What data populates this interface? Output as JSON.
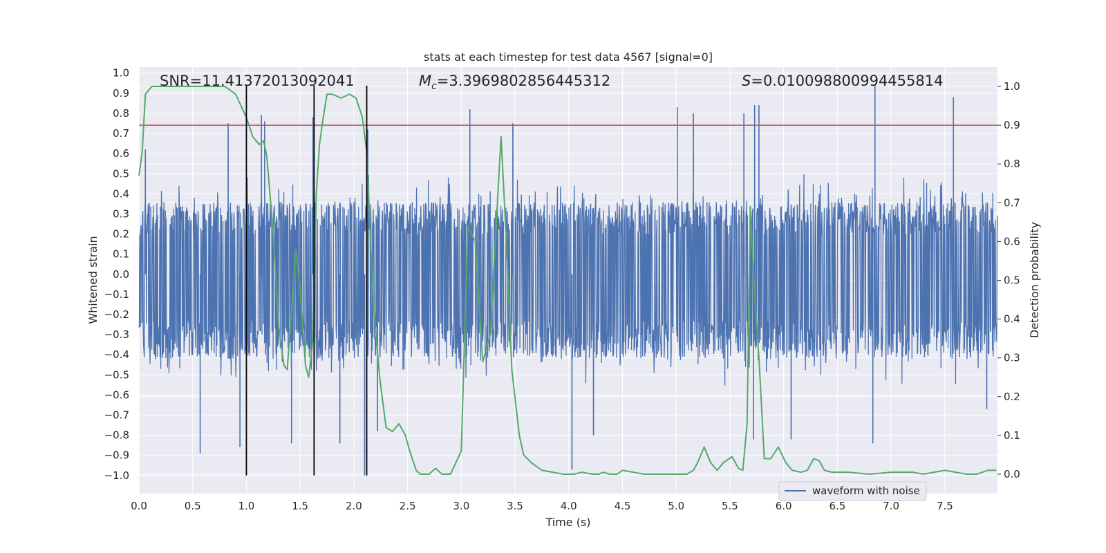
{
  "chart_data": {
    "type": "line",
    "title": "stats at each timestep for test data 4567 [signal=0]",
    "xlabel": "Time (s)",
    "ylabel": "Whitened strain",
    "y2label": "Detection probability",
    "xlim": [
      0.0,
      7.99
    ],
    "ylim": [
      -1.09,
      1.03
    ],
    "y2lim": [
      -0.05,
      1.05
    ],
    "x_ticks": [
      "0.0",
      "0.5",
      "1.0",
      "1.5",
      "2.0",
      "2.5",
      "3.0",
      "3.5",
      "4.0",
      "4.5",
      "5.0",
      "5.5",
      "6.0",
      "6.5",
      "7.0",
      "7.5"
    ],
    "y_ticks": [
      "1.0",
      "0.9",
      "0.8",
      "0.7",
      "0.6",
      "0.5",
      "0.4",
      "0.3",
      "0.2",
      "0.1",
      "0.0",
      "-0.1",
      "-0.2",
      "-0.3",
      "-0.4",
      "-0.5",
      "-0.6",
      "-0.7",
      "-0.8",
      "-0.9",
      "-1.0"
    ],
    "y2_ticks": [
      "1.0",
      "0.9",
      "0.8",
      "0.7",
      "0.6",
      "0.5",
      "0.4",
      "0.3",
      "0.2",
      "0.1",
      "0.0"
    ],
    "grid": true,
    "legend": {
      "position": "lower-right",
      "entries": [
        "waveform with noise"
      ]
    },
    "colors": {
      "waveform": "#4c72b0",
      "probability": "#55a868",
      "threshold": "#c44e52",
      "markers": "#000000",
      "plot_bg": "#eaeaf2",
      "grid": "#ffffff"
    },
    "annotations": [
      {
        "id": "snr",
        "text": "SNR=11.41372013092041"
      },
      {
        "id": "mc",
        "text_prefix": "M",
        "text_sub": "c",
        "text_rest": "=3.3969802856445312"
      },
      {
        "id": "s",
        "text_prefix": "S",
        "text_rest": "=0.010098800994455814"
      }
    ],
    "series": [
      {
        "name": "waveform with noise",
        "axis": "left",
        "render": "dense noise",
        "envelope_typical": [
          -0.42,
          0.36
        ],
        "peaks": [
          {
            "x": 0.06,
            "y": 0.62
          },
          {
            "x": 0.57,
            "y": -0.89
          },
          {
            "x": 0.83,
            "y": 0.75
          },
          {
            "x": 0.94,
            "y": -0.86
          },
          {
            "x": 1.14,
            "y": 0.79
          },
          {
            "x": 1.17,
            "y": 0.76
          },
          {
            "x": 1.42,
            "y": -0.84
          },
          {
            "x": 1.62,
            "y": 0.78
          },
          {
            "x": 1.63,
            "y": -0.76
          },
          {
            "x": 1.87,
            "y": -0.84
          },
          {
            "x": 2.1,
            "y": -1.0
          },
          {
            "x": 2.13,
            "y": 0.72
          },
          {
            "x": 2.22,
            "y": -0.78
          },
          {
            "x": 3.08,
            "y": 0.82
          },
          {
            "x": 3.48,
            "y": 0.75
          },
          {
            "x": 4.03,
            "y": -0.97
          },
          {
            "x": 4.23,
            "y": -0.8
          },
          {
            "x": 5.01,
            "y": 0.83
          },
          {
            "x": 5.16,
            "y": 0.8
          },
          {
            "x": 5.63,
            "y": 0.8
          },
          {
            "x": 5.73,
            "y": 0.84
          },
          {
            "x": 5.77,
            "y": 0.84
          },
          {
            "x": 5.72,
            "y": -0.82
          },
          {
            "x": 6.07,
            "y": -0.82
          },
          {
            "x": 6.85,
            "y": 0.94
          },
          {
            "x": 6.83,
            "y": -0.84
          },
          {
            "x": 7.58,
            "y": 0.88
          },
          {
            "x": 7.89,
            "y": -0.67
          }
        ]
      },
      {
        "name": "",
        "axis": "right",
        "x": [
          0.0,
          0.03,
          0.06,
          0.12,
          0.2,
          0.4,
          0.6,
          0.72,
          0.8,
          0.9,
          1.0,
          1.06,
          1.12,
          1.16,
          1.19,
          1.25,
          1.3,
          1.35,
          1.38,
          1.42,
          1.46,
          1.5,
          1.55,
          1.58,
          1.62,
          1.65,
          1.68,
          1.71,
          1.75,
          1.8,
          1.88,
          1.96,
          2.02,
          2.08,
          2.12,
          2.18,
          2.24,
          2.3,
          2.36,
          2.42,
          2.48,
          2.52,
          2.58,
          2.62,
          2.7,
          2.76,
          2.82,
          2.9,
          3.0,
          3.06,
          3.13,
          3.2,
          3.27,
          3.33,
          3.37,
          3.42,
          3.47,
          3.54,
          3.58,
          3.65,
          3.75,
          3.85,
          3.95,
          4.0,
          4.05,
          4.12,
          4.22,
          4.28,
          4.32,
          4.38,
          4.45,
          4.5,
          4.6,
          4.7,
          4.8,
          4.9,
          5.0,
          5.1,
          5.16,
          5.2,
          5.26,
          5.32,
          5.38,
          5.44,
          5.52,
          5.58,
          5.62,
          5.66,
          5.69,
          5.73,
          5.77,
          5.82,
          5.88,
          5.95,
          6.02,
          6.08,
          6.16,
          6.22,
          6.28,
          6.33,
          6.38,
          6.45,
          6.6,
          6.8,
          7.0,
          7.2,
          7.3,
          7.4,
          7.5,
          7.6,
          7.7,
          7.8,
          7.9,
          7.98
        ],
        "values": [
          0.77,
          0.83,
          0.98,
          1.0,
          1.0,
          1.0,
          1.0,
          1.0,
          1.0,
          0.98,
          0.92,
          0.87,
          0.85,
          0.86,
          0.82,
          0.62,
          0.38,
          0.28,
          0.27,
          0.42,
          0.58,
          0.48,
          0.28,
          0.25,
          0.35,
          0.72,
          0.85,
          0.91,
          0.98,
          0.98,
          0.97,
          0.98,
          0.97,
          0.92,
          0.83,
          0.45,
          0.25,
          0.12,
          0.11,
          0.13,
          0.1,
          0.06,
          0.01,
          0.0,
          0.0,
          0.015,
          0.0,
          0.0,
          0.06,
          0.64,
          0.6,
          0.29,
          0.36,
          0.67,
          0.87,
          0.6,
          0.27,
          0.1,
          0.05,
          0.03,
          0.01,
          0.005,
          0.0,
          0.0,
          0.0,
          0.005,
          0.0,
          0.0,
          0.005,
          0.0,
          0.0,
          0.01,
          0.005,
          0.0,
          0.0,
          0.0,
          0.0,
          0.0,
          0.01,
          0.03,
          0.07,
          0.03,
          0.01,
          0.03,
          0.045,
          0.015,
          0.01,
          0.13,
          0.69,
          0.46,
          0.3,
          0.04,
          0.04,
          0.07,
          0.03,
          0.01,
          0.005,
          0.01,
          0.04,
          0.035,
          0.01,
          0.005,
          0.005,
          0.0,
          0.005,
          0.005,
          0.0,
          0.005,
          0.01,
          0.005,
          0.0,
          0.0,
          0.01,
          0.01
        ]
      }
    ],
    "hlines": [
      {
        "axis": "right",
        "y": 0.9,
        "color": "#c44e52"
      }
    ],
    "vlines": [
      {
        "x": 1.0
      },
      {
        "x": 1.63
      },
      {
        "x": 2.12
      }
    ],
    "vline_range": [
      -1.0,
      1.0
    ]
  }
}
